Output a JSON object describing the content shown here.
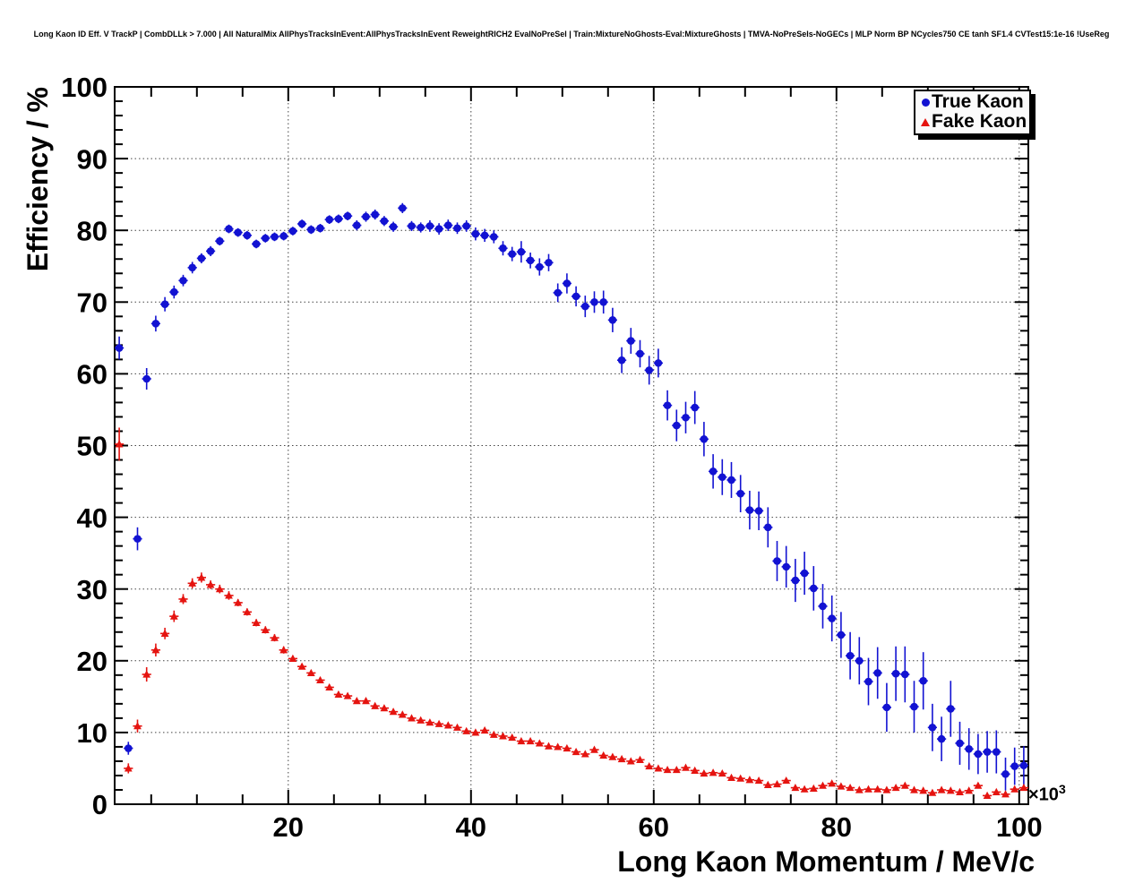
{
  "title": "Long Kaon ID Eff. V TrackP | CombDLLk > 7.000 | All NaturalMix AllPhysTracksInEvent:AllPhysTracksInEvent ReweightRICH2 EvalNoPreSel | Train:MixtureNoGhosts-Eval:MixtureGhosts | TMVA-NoPreSels-NoGECs | MLP Norm BP NCycles750 CE tanh SF1.4 CVTest15:1e-16 !UseReg",
  "legend": {
    "entries": [
      {
        "label": "True Kaon",
        "marker": "circle",
        "color": "#1212d2"
      },
      {
        "label": "Fake Kaon",
        "marker": "triangle",
        "color": "#e51410"
      }
    ]
  },
  "axes": {
    "x": {
      "title": "Long Kaon Momentum / MeV/c",
      "tick_labels": [
        20,
        40,
        60,
        80,
        100
      ],
      "minor_tick_step": 5,
      "multiplier_base": "×10",
      "multiplier_exp": "3",
      "range": [
        1,
        101
      ]
    },
    "y": {
      "title": "Efficiency / %",
      "tick_labels": [
        0,
        10,
        20,
        30,
        40,
        50,
        60,
        70,
        80,
        90,
        100
      ],
      "minor_tick_step": 2,
      "range": [
        0,
        100
      ]
    }
  },
  "chart_data": {
    "type": "scatter",
    "title": "Long Kaon ID efficiency vs momentum",
    "xlabel": "Long Kaon Momentum / MeV/c (×10³)",
    "ylabel": "Efficiency / %",
    "xlim": [
      1,
      101
    ],
    "ylim": [
      0,
      100
    ],
    "grid": "dotted",
    "grid_x_step": 20,
    "grid_y_step": 10,
    "legend_position": "top-right",
    "x_start": 1.5,
    "x_step": 1.0,
    "series": [
      {
        "name": "True Kaon",
        "marker": "circle",
        "color": "#1212d2",
        "values": [
          63.6,
          7.8,
          37.0,
          59.3,
          67.0,
          69.7,
          71.4,
          73.0,
          74.8,
          76.1,
          77.1,
          78.5,
          80.2,
          79.7,
          79.3,
          78.1,
          78.9,
          79.1,
          79.2,
          79.9,
          80.9,
          80.1,
          80.3,
          81.5,
          81.6,
          82.0,
          80.7,
          81.9,
          82.2,
          81.3,
          80.5,
          83.1,
          80.6,
          80.4,
          80.6,
          80.2,
          80.7,
          80.3,
          80.6,
          79.5,
          79.3,
          79.1,
          77.5,
          76.7,
          77.0,
          75.8,
          74.9,
          75.5,
          71.3,
          72.6,
          70.8,
          69.4,
          70.0,
          70.0,
          67.5,
          61.9,
          64.6,
          62.8,
          60.5,
          61.5,
          55.6,
          52.8,
          53.9,
          55.3,
          50.9,
          46.4,
          45.6,
          45.2,
          43.3,
          41.0,
          40.9,
          38.6,
          33.9,
          33.1,
          31.2,
          32.2,
          30.1,
          27.6,
          25.9,
          23.6,
          20.7,
          20.0,
          17.1,
          18.3,
          13.5,
          18.2,
          18.1,
          13.6,
          17.2,
          10.7,
          9.1,
          13.3,
          8.5,
          7.7,
          7.0,
          7.3,
          7.3,
          4.2,
          5.3,
          5.4
        ],
        "errors": [
          1.6,
          0.9,
          1.6,
          1.5,
          1.1,
          1.0,
          0.9,
          0.8,
          0.8,
          0.7,
          0.7,
          0.6,
          0.6,
          0.6,
          0.6,
          0.6,
          0.6,
          0.6,
          0.6,
          0.6,
          0.6,
          0.6,
          0.6,
          0.6,
          0.6,
          0.6,
          0.7,
          0.7,
          0.7,
          0.7,
          0.7,
          0.7,
          0.7,
          0.7,
          0.8,
          0.8,
          0.8,
          0.8,
          0.8,
          0.9,
          0.9,
          0.9,
          1.0,
          1.0,
          1.5,
          1.1,
          1.2,
          1.2,
          1.3,
          1.4,
          1.4,
          1.5,
          1.5,
          1.6,
          1.7,
          1.8,
          1.8,
          1.9,
          2.0,
          2.0,
          2.1,
          2.2,
          2.2,
          2.3,
          2.4,
          2.4,
          2.5,
          2.5,
          2.6,
          2.7,
          2.7,
          2.8,
          2.8,
          2.9,
          3.0,
          3.0,
          3.1,
          3.1,
          3.2,
          3.2,
          3.3,
          3.3,
          3.3,
          3.6,
          3.4,
          3.8,
          3.9,
          3.6,
          4.0,
          3.3,
          3.1,
          3.9,
          3.0,
          2.9,
          2.8,
          2.9,
          3.0,
          2.3,
          2.6,
          2.7
        ]
      },
      {
        "name": "Fake Kaon",
        "marker": "triangle",
        "color": "#e51410",
        "values": [
          50.2,
          5.0,
          10.9,
          18.1,
          21.5,
          23.8,
          26.2,
          28.6,
          30.8,
          31.6,
          30.6,
          30.0,
          29.1,
          28.1,
          26.8,
          25.3,
          24.3,
          23.2,
          21.5,
          20.3,
          19.2,
          18.3,
          17.3,
          16.3,
          15.3,
          15.1,
          14.4,
          14.4,
          13.7,
          13.4,
          12.9,
          12.5,
          12.0,
          11.7,
          11.4,
          11.2,
          11.0,
          10.7,
          10.2,
          10.0,
          10.3,
          9.7,
          9.5,
          9.3,
          8.8,
          8.8,
          8.5,
          8.1,
          8.0,
          7.8,
          7.3,
          7.0,
          7.6,
          6.8,
          6.6,
          6.3,
          6.0,
          6.2,
          5.3,
          5.0,
          4.8,
          4.8,
          5.1,
          4.7,
          4.3,
          4.4,
          4.3,
          3.7,
          3.6,
          3.4,
          3.3,
          2.7,
          2.8,
          3.3,
          2.3,
          2.1,
          2.2,
          2.6,
          2.9,
          2.5,
          2.3,
          2.0,
          2.1,
          2.1,
          2.0,
          2.3,
          2.6,
          2.0,
          1.9,
          1.6,
          2.0,
          1.9,
          1.7,
          1.9,
          2.6,
          1.2,
          1.7,
          1.4,
          2.1,
          2.3
        ],
        "errors": [
          2.3,
          0.7,
          0.9,
          1.0,
          0.9,
          0.8,
          0.8,
          0.7,
          0.7,
          0.7,
          0.6,
          0.6,
          0.6,
          0.5,
          0.5,
          0.5,
          0.5,
          0.5,
          0.5,
          0.4,
          0.4,
          0.4,
          0.4,
          0.4,
          0.4,
          0.4,
          0.4,
          0.4,
          0.4,
          0.4,
          0.4,
          0.4,
          0.3,
          0.3,
          0.3,
          0.3,
          0.3,
          0.3,
          0.3,
          0.3,
          0.3,
          0.3,
          0.3,
          0.3,
          0.3,
          0.3,
          0.3,
          0.3,
          0.3,
          0.3,
          0.3,
          0.3,
          0.3,
          0.3,
          0.3,
          0.3,
          0.3,
          0.3,
          0.3,
          0.3,
          0.3,
          0.3,
          0.3,
          0.3,
          0.3,
          0.3,
          0.3,
          0.3,
          0.3,
          0.3,
          0.3,
          0.3,
          0.3,
          0.3,
          0.3,
          0.3,
          0.3,
          0.3,
          0.3,
          0.3,
          0.3,
          0.3,
          0.3,
          0.3,
          0.3,
          0.3,
          0.4,
          0.3,
          0.3,
          0.3,
          0.3,
          0.3,
          0.3,
          0.3,
          0.4,
          0.3,
          0.3,
          0.3,
          0.4,
          0.4
        ]
      }
    ]
  }
}
